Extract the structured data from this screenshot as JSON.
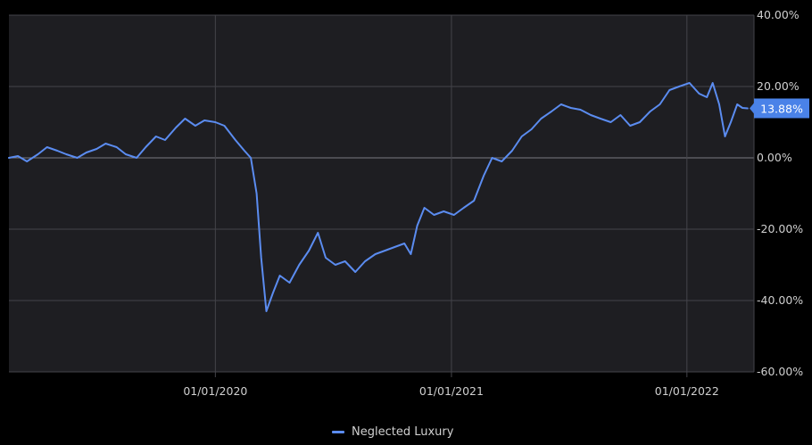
{
  "chart_data": {
    "type": "line",
    "title": "",
    "xlabel": "",
    "ylabel": "",
    "x_ticks": [
      "01/01/2020",
      "01/01/2021",
      "01/01/2022"
    ],
    "y_ticks": [
      "40.00%",
      "20.00%",
      "0.00%",
      "-20.00%",
      "-40.00%",
      "-60.00%"
    ],
    "ylim": [
      -60,
      40
    ],
    "xlim": [
      "2019-02-15",
      "2022-04-15"
    ],
    "grid": true,
    "legend_position": "bottom-center",
    "last_value_label": "13.88%",
    "colors": {
      "line": "#5b8cf0",
      "background": "#1e1e22",
      "grid": "#44444a",
      "zero_line": "#7a7a80",
      "label_badge": "#4a82e8"
    },
    "series": [
      {
        "name": "Neglected Luxury",
        "points": [
          [
            "2019-02-15",
            0.0
          ],
          [
            "2019-03-01",
            0.5
          ],
          [
            "2019-03-15",
            -1.0
          ],
          [
            "2019-04-01",
            1.0
          ],
          [
            "2019-04-15",
            3.0
          ],
          [
            "2019-05-01",
            2.0
          ],
          [
            "2019-05-15",
            1.0
          ],
          [
            "2019-06-01",
            0.0
          ],
          [
            "2019-06-15",
            1.5
          ],
          [
            "2019-07-01",
            2.5
          ],
          [
            "2019-07-15",
            4.0
          ],
          [
            "2019-08-01",
            3.0
          ],
          [
            "2019-08-15",
            1.0
          ],
          [
            "2019-09-01",
            0.0
          ],
          [
            "2019-09-15",
            3.0
          ],
          [
            "2019-10-01",
            6.0
          ],
          [
            "2019-10-15",
            5.0
          ],
          [
            "2019-11-01",
            8.5
          ],
          [
            "2019-11-15",
            11.0
          ],
          [
            "2019-12-01",
            9.0
          ],
          [
            "2019-12-15",
            10.5
          ],
          [
            "2020-01-01",
            10.0
          ],
          [
            "2020-01-15",
            9.0
          ],
          [
            "2020-02-01",
            5.0
          ],
          [
            "2020-02-15",
            2.0
          ],
          [
            "2020-02-25",
            0.0
          ],
          [
            "2020-03-05",
            -10.0
          ],
          [
            "2020-03-12",
            -28.0
          ],
          [
            "2020-03-20",
            -43.0
          ],
          [
            "2020-03-30",
            -38.0
          ],
          [
            "2020-04-10",
            -33.0
          ],
          [
            "2020-04-25",
            -35.0
          ],
          [
            "2020-05-10",
            -30.0
          ],
          [
            "2020-05-25",
            -26.0
          ],
          [
            "2020-06-08",
            -21.0
          ],
          [
            "2020-06-20",
            -28.0
          ],
          [
            "2020-07-05",
            -30.0
          ],
          [
            "2020-07-20",
            -29.0
          ],
          [
            "2020-08-05",
            -32.0
          ],
          [
            "2020-08-20",
            -29.0
          ],
          [
            "2020-09-05",
            -27.0
          ],
          [
            "2020-09-20",
            -26.0
          ],
          [
            "2020-10-05",
            -25.0
          ],
          [
            "2020-10-20",
            -24.0
          ],
          [
            "2020-10-30",
            -27.0
          ],
          [
            "2020-11-09",
            -19.0
          ],
          [
            "2020-11-20",
            -14.0
          ],
          [
            "2020-12-05",
            -16.0
          ],
          [
            "2020-12-20",
            -15.0
          ],
          [
            "2021-01-05",
            -16.0
          ],
          [
            "2021-01-20",
            -14.0
          ],
          [
            "2021-02-05",
            -12.0
          ],
          [
            "2021-02-20",
            -5.0
          ],
          [
            "2021-03-05",
            0.0
          ],
          [
            "2021-03-20",
            -1.0
          ],
          [
            "2021-04-05",
            2.0
          ],
          [
            "2021-04-20",
            6.0
          ],
          [
            "2021-05-05",
            8.0
          ],
          [
            "2021-05-20",
            11.0
          ],
          [
            "2021-06-05",
            13.0
          ],
          [
            "2021-06-20",
            15.0
          ],
          [
            "2021-07-05",
            14.0
          ],
          [
            "2021-07-20",
            13.5
          ],
          [
            "2021-08-05",
            12.0
          ],
          [
            "2021-08-20",
            11.0
          ],
          [
            "2021-09-05",
            10.0
          ],
          [
            "2021-09-20",
            12.0
          ],
          [
            "2021-10-05",
            9.0
          ],
          [
            "2021-10-20",
            10.0
          ],
          [
            "2021-11-05",
            13.0
          ],
          [
            "2021-11-20",
            15.0
          ],
          [
            "2021-12-05",
            19.0
          ],
          [
            "2021-12-20",
            20.0
          ],
          [
            "2022-01-05",
            21.0
          ],
          [
            "2022-01-20",
            18.0
          ],
          [
            "2022-02-01",
            17.0
          ],
          [
            "2022-02-10",
            21.0
          ],
          [
            "2022-02-20",
            15.0
          ],
          [
            "2022-03-01",
            6.0
          ],
          [
            "2022-03-10",
            10.0
          ],
          [
            "2022-03-20",
            15.0
          ],
          [
            "2022-03-28",
            14.0
          ],
          [
            "2022-04-05",
            13.88
          ]
        ]
      }
    ]
  }
}
